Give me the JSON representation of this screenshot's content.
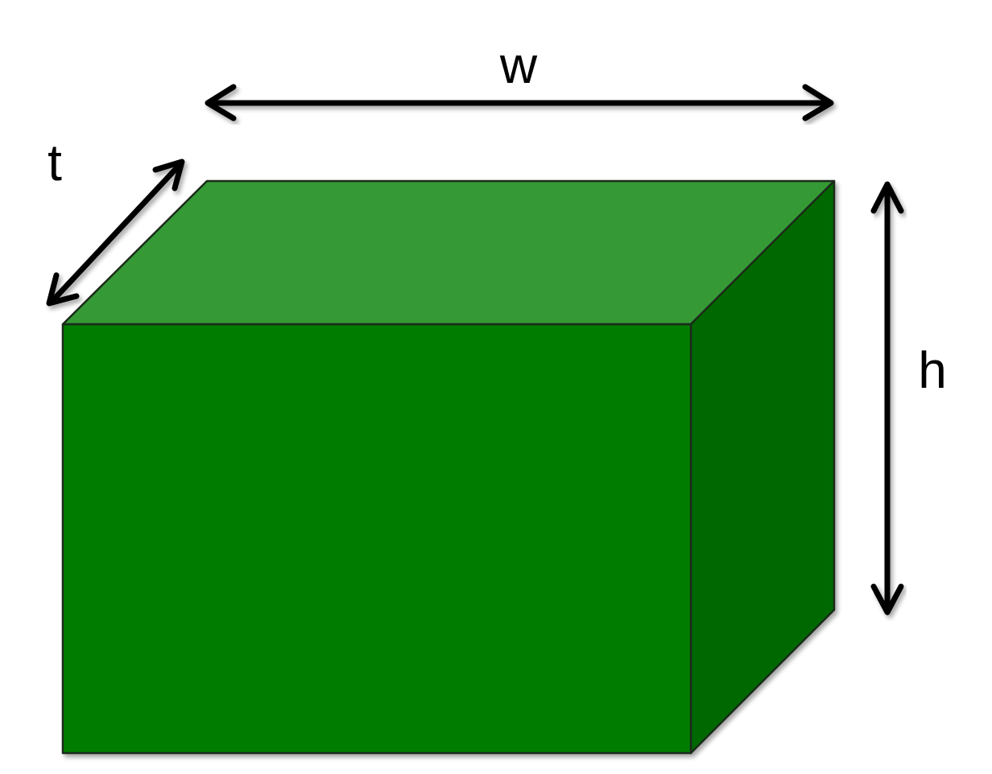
{
  "diagram": {
    "subject": "rectangular-box",
    "labels": {
      "width": "w",
      "thickness": "t",
      "height": "h"
    },
    "colors": {
      "front_face": "#027d03",
      "top_face": "#359a35",
      "side_face": "#016701",
      "edge": "#1a2a1a",
      "arrows": "#000000",
      "background": "#ffffff"
    }
  }
}
